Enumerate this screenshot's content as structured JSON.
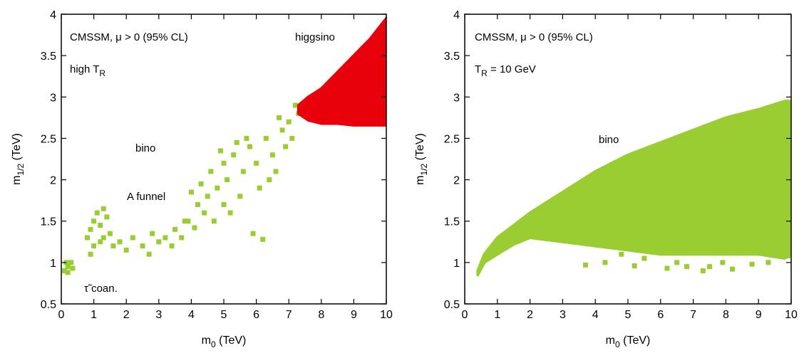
{
  "chart_data": [
    {
      "type": "scatter",
      "xlabel": {
        "text": "m",
        "sub": "0",
        "unit": " (TeV)"
      },
      "ylabel": {
        "text": "m",
        "sub": "1/2",
        "unit": " (TeV)"
      },
      "xlim": [
        0,
        10
      ],
      "ylim": [
        0.5,
        4
      ],
      "xticks": [
        0,
        1,
        2,
        3,
        4,
        5,
        6,
        7,
        8,
        9,
        10
      ],
      "yticks": [
        0.5,
        1,
        1.5,
        2,
        2.5,
        3,
        3.5,
        4
      ],
      "annotations": [
        {
          "text": "CMSSM, μ > 0  (95% CL)"
        },
        {
          "text": "high T",
          "sub": "R"
        },
        {
          "text": "higgsino"
        },
        {
          "text": "bino"
        },
        {
          "text": "A funnel"
        },
        {
          "text": "τ̃ coan."
        }
      ],
      "series": [
        {
          "color": "#9acd32",
          "marker": "square",
          "x": [
            0.1,
            0.2,
            0.3,
            0.2,
            0.35,
            0.15,
            0.8,
            0.9,
            1.0,
            1.1,
            1.2,
            1.3,
            1.0,
            1.2,
            1.4,
            1.5,
            1.3,
            0.9,
            1.6,
            1.8,
            2.0,
            2.2,
            2.5,
            2.7,
            3.0,
            3.2,
            3.4,
            2.8,
            3.5,
            3.7,
            3.9,
            4.0,
            4.2,
            4.3,
            4.5,
            4.6,
            4.8,
            5.0,
            5.1,
            5.3,
            5.5,
            5.6,
            5.8,
            6.0,
            6.1,
            6.3,
            6.5,
            6.6,
            6.8,
            7.0,
            7.1,
            7.2,
            6.9,
            5.2,
            4.7,
            4.4,
            5.9,
            6.2,
            4.1,
            3.8,
            5.7,
            6.4,
            7.3,
            7.4,
            5.4,
            4.9,
            6.7,
            5.0
          ],
          "values": [
            0.9,
            0.95,
            1.0,
            0.88,
            0.93,
            1.0,
            1.3,
            1.4,
            1.5,
            1.6,
            1.45,
            1.3,
            1.2,
            1.25,
            1.55,
            1.35,
            1.65,
            1.1,
            1.2,
            1.25,
            1.15,
            1.3,
            1.2,
            1.1,
            1.25,
            1.3,
            1.2,
            1.35,
            1.4,
            1.3,
            1.5,
            1.85,
            1.7,
            1.95,
            1.8,
            2.1,
            1.9,
            2.2,
            2.0,
            2.3,
            1.8,
            2.1,
            2.4,
            2.2,
            1.9,
            2.5,
            2.3,
            2.1,
            2.6,
            2.7,
            2.5,
            2.9,
            2.4,
            1.6,
            1.5,
            1.6,
            1.35,
            1.28,
            1.42,
            1.5,
            2.5,
            2.0,
            2.8,
            2.85,
            2.45,
            2.35,
            2.75,
            1.7
          ]
        },
        {
          "color": "#e8000b",
          "marker": "triangle",
          "x": [
            7.3,
            7.6,
            8.0,
            8.5,
            9.0,
            9.5,
            10
          ],
          "low": [
            2.8,
            2.72,
            2.68,
            2.68,
            2.66,
            2.66,
            2.66
          ],
          "high": [
            2.9,
            3.0,
            3.1,
            3.3,
            3.5,
            3.7,
            3.95
          ]
        }
      ]
    },
    {
      "type": "scatter",
      "xlabel": {
        "text": "m",
        "sub": "0",
        "unit": " (TeV)"
      },
      "ylabel": {
        "text": "m",
        "sub": "1/2",
        "unit": " (TeV)"
      },
      "xlim": [
        0,
        10
      ],
      "ylim": [
        0.5,
        4
      ],
      "xticks": [
        0,
        1,
        2,
        3,
        4,
        5,
        6,
        7,
        8,
        9,
        10
      ],
      "yticks": [
        0.5,
        1,
        1.5,
        2,
        2.5,
        3,
        3.5,
        4
      ],
      "annotations": [
        {
          "text": "CMSSM, μ > 0  (95% CL)"
        },
        {
          "text": "T",
          "sub": "R",
          "rest": " = 10 GeV"
        },
        {
          "text": "bino"
        }
      ],
      "series": [
        {
          "color": "#9acd32",
          "marker": "square",
          "x": [
            0.4,
            0.6,
            1,
            1.5,
            2,
            3,
            4,
            5,
            6,
            7,
            8,
            9,
            9.8,
            10
          ],
          "low": [
            0.85,
            1.0,
            1.1,
            1.22,
            1.3,
            1.25,
            1.2,
            1.15,
            1.1,
            1.1,
            1.1,
            1.1,
            1.05,
            1.1
          ],
          "high": [
            0.9,
            1.1,
            1.3,
            1.45,
            1.6,
            1.85,
            2.1,
            2.3,
            2.45,
            2.6,
            2.75,
            2.85,
            2.95,
            2.95
          ]
        },
        {
          "color": "#9acd32",
          "marker": "square",
          "x": [
            3.7,
            4.3,
            5.2,
            5.5,
            6.2,
            6.8,
            7.3,
            7.5,
            8.2,
            8.8,
            9.3,
            9.9,
            4.8,
            6.5,
            7.9
          ],
          "values": [
            0.97,
            1.0,
            0.96,
            1.05,
            0.93,
            0.95,
            0.9,
            0.95,
            0.92,
            0.98,
            1.0,
            1.08,
            1.1,
            1.0,
            1.0
          ]
        }
      ]
    }
  ]
}
